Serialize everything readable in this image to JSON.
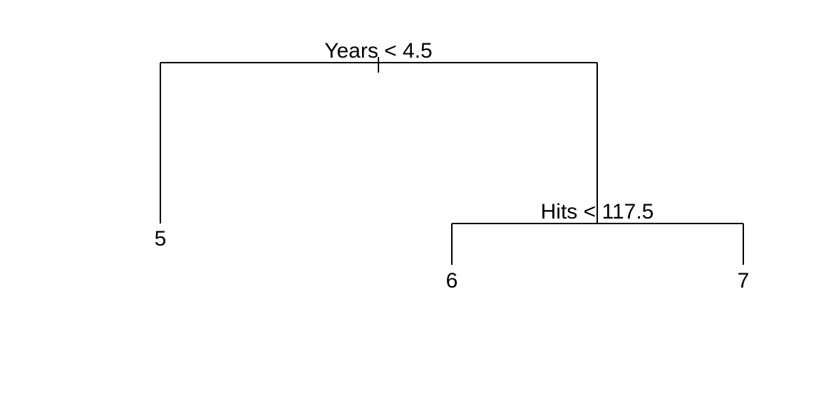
{
  "tree": {
    "root": {
      "split": "Years < 4.5",
      "left": {
        "leaf": "5"
      },
      "right": {
        "split": "Hits < 117.5",
        "left": {
          "leaf": "6"
        },
        "right": {
          "leaf": "7"
        }
      }
    }
  },
  "colors": {
    "line": "#000000",
    "text": "#000000",
    "background": "#ffffff"
  }
}
